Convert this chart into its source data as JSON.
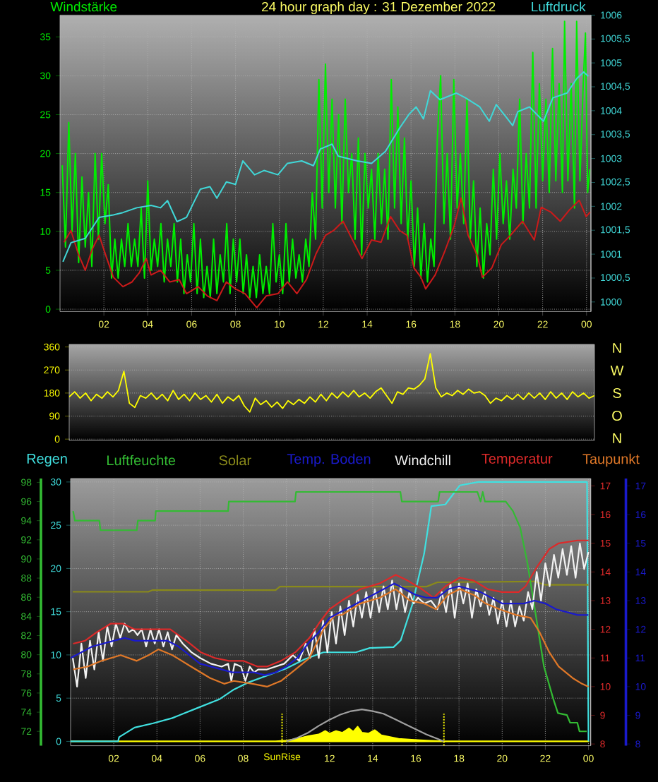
{
  "chart_data": [
    {
      "type": "line",
      "title": "24 hour graph day : 31 Dezember 2022",
      "ylabel": "Windstärke",
      "y2label": "Luftdruck",
      "xlim": [
        "2022-12-31T00:00",
        "2023-01-01T00:12"
      ],
      "xticks": [
        {
          "value": "2022-12-31T02:00",
          "label": "02"
        },
        {
          "value": "2022-12-31T04:00",
          "label": "04"
        },
        {
          "value": "2022-12-31T06:00",
          "label": "06"
        },
        {
          "value": "2022-12-31T08:00",
          "label": "08"
        },
        {
          "value": "2022-12-31T10:00",
          "label": "10"
        },
        {
          "value": "2022-12-31T12:00",
          "label": "12"
        },
        {
          "value": "2022-12-31T14:00",
          "label": "14"
        },
        {
          "value": "2022-12-31T16:00",
          "label": "16"
        },
        {
          "value": "2022-12-31T18:00",
          "label": "18"
        },
        {
          "value": "2022-12-31T20:00",
          "label": "20"
        },
        {
          "value": "2022-12-31T22:00",
          "label": "22"
        },
        {
          "value": "2023-01-01T00:00",
          "label": "00"
        }
      ],
      "ylim": [
        -0.3,
        37.8
      ],
      "yticks": [
        0,
        5,
        10,
        15,
        20,
        25,
        30,
        35
      ],
      "y2lim": [
        999.8,
        1006
      ],
      "y2ticks": [
        1000,
        {
          "value": 1000.5,
          "label": "1000,5"
        },
        1001,
        {
          "value": 1001.5,
          "label": "1001,5"
        },
        1002,
        {
          "value": 1002.5,
          "label": "1002,5"
        },
        1003,
        {
          "value": 1003.5,
          "label": "1003,5"
        },
        1004,
        {
          "value": 1004.5,
          "label": "1004,5"
        },
        1005,
        {
          "value": 1005.5,
          "label": "1005,5"
        },
        1006
      ],
      "grid": true,
      "series": [
        {
          "color": "#00ee00",
          "x": [
            "2022-12-31T00:06",
            "2022-12-31T00:15",
            "2022-12-31T00:24",
            "2022-12-31T00:33",
            "2022-12-31T00:42",
            "2022-12-31T00:51",
            "2022-12-31T01:00",
            "2022-12-31T01:09",
            "2022-12-31T01:18",
            "2022-12-31T01:27",
            "2022-12-31T01:36",
            "2022-12-31T01:45",
            "2022-12-31T01:54",
            "2022-12-31T02:03",
            "2022-12-31T02:12",
            "2022-12-31T02:21",
            "2022-12-31T02:30",
            "2022-12-31T02:39",
            "2022-12-31T02:48",
            "2022-12-31T02:57",
            "2022-12-31T03:06",
            "2022-12-31T03:15",
            "2022-12-31T03:24",
            "2022-12-31T03:33",
            "2022-12-31T03:42",
            "2022-12-31T03:51",
            "2022-12-31T04:00",
            "2022-12-31T04:09",
            "2022-12-31T04:18",
            "2022-12-31T04:27",
            "2022-12-31T04:36",
            "2022-12-31T04:45",
            "2022-12-31T04:54",
            "2022-12-31T05:03",
            "2022-12-31T05:12",
            "2022-12-31T05:21",
            "2022-12-31T05:30",
            "2022-12-31T05:39",
            "2022-12-31T05:48",
            "2022-12-31T05:57",
            "2022-12-31T06:06",
            "2022-12-31T06:15",
            "2022-12-31T06:24",
            "2022-12-31T06:33",
            "2022-12-31T06:42",
            "2022-12-31T06:51",
            "2022-12-31T07:00",
            "2022-12-31T07:09",
            "2022-12-31T07:18",
            "2022-12-31T07:27",
            "2022-12-31T07:36",
            "2022-12-31T07:45",
            "2022-12-31T07:54",
            "2022-12-31T08:03",
            "2022-12-31T08:12",
            "2022-12-31T08:21",
            "2022-12-31T08:30",
            "2022-12-31T08:39",
            "2022-12-31T08:48",
            "2022-12-31T08:57",
            "2022-12-31T09:06",
            "2022-12-31T09:15",
            "2022-12-31T09:24",
            "2022-12-31T09:33",
            "2022-12-31T09:42",
            "2022-12-31T09:51",
            "2022-12-31T10:00",
            "2022-12-31T10:09",
            "2022-12-31T10:18",
            "2022-12-31T10:27",
            "2022-12-31T10:36",
            "2022-12-31T10:45",
            "2022-12-31T10:54",
            "2022-12-31T11:03",
            "2022-12-31T11:12",
            "2022-12-31T11:21",
            "2022-12-31T11:30",
            "2022-12-31T11:39",
            "2022-12-31T11:48",
            "2022-12-31T11:57",
            "2022-12-31T12:06",
            "2022-12-31T12:15",
            "2022-12-31T12:24",
            "2022-12-31T12:33",
            "2022-12-31T12:42",
            "2022-12-31T12:51",
            "2022-12-31T13:00",
            "2022-12-31T13:09",
            "2022-12-31T13:18",
            "2022-12-31T13:27",
            "2022-12-31T13:36",
            "2022-12-31T13:45",
            "2022-12-31T13:54",
            "2022-12-31T14:03",
            "2022-12-31T14:12",
            "2022-12-31T14:21",
            "2022-12-31T14:30",
            "2022-12-31T14:39",
            "2022-12-31T14:48",
            "2022-12-31T14:57",
            "2022-12-31T15:06",
            "2022-12-31T15:15",
            "2022-12-31T15:24",
            "2022-12-31T15:33",
            "2022-12-31T15:42",
            "2022-12-31T15:51",
            "2022-12-31T16:00",
            "2022-12-31T16:09",
            "2022-12-31T16:18",
            "2022-12-31T16:27",
            "2022-12-31T16:36",
            "2022-12-31T16:45",
            "2022-12-31T16:54",
            "2022-12-31T17:03",
            "2022-12-31T17:12",
            "2022-12-31T17:21",
            "2022-12-31T17:30",
            "2022-12-31T17:39",
            "2022-12-31T17:48",
            "2022-12-31T17:57",
            "2022-12-31T18:06",
            "2022-12-31T18:15",
            "2022-12-31T18:24",
            "2022-12-31T18:33",
            "2022-12-31T18:42",
            "2022-12-31T18:51",
            "2022-12-31T19:00",
            "2022-12-31T19:09",
            "2022-12-31T19:18",
            "2022-12-31T19:27",
            "2022-12-31T19:36",
            "2022-12-31T19:45",
            "2022-12-31T19:54",
            "2022-12-31T20:03",
            "2022-12-31T20:12",
            "2022-12-31T20:21",
            "2022-12-31T20:30",
            "2022-12-31T20:39",
            "2022-12-31T20:48",
            "2022-12-31T20:57",
            "2022-12-31T21:06",
            "2022-12-31T21:15",
            "2022-12-31T21:24",
            "2022-12-31T21:33",
            "2022-12-31T21:42",
            "2022-12-31T21:51",
            "2022-12-31T22:00",
            "2022-12-31T22:09",
            "2022-12-31T22:18",
            "2022-12-31T22:27",
            "2022-12-31T22:36",
            "2022-12-31T22:45",
            "2022-12-31T22:54",
            "2022-12-31T23:00",
            "2022-12-31T23:09",
            "2022-12-31T23:18",
            "2022-12-31T23:27",
            "2022-12-31T23:33",
            "2022-12-31T23:42",
            "2022-12-31T23:51",
            "2022-12-31T23:57",
            "2023-01-01T00:03",
            "2023-01-01T00:09"
          ],
          "values": [
            18.5,
            8,
            24,
            10,
            20,
            6,
            17,
            8,
            15,
            5.5,
            20,
            9,
            20,
            11,
            16,
            4,
            9,
            4,
            9,
            5.5,
            11,
            5.5,
            9,
            5.5,
            13,
            4,
            16.5,
            5,
            9,
            5.5,
            11,
            3.5,
            9,
            5.5,
            11,
            3.5,
            9,
            2,
            7,
            3.5,
            11,
            2,
            9,
            1.5,
            5.5,
            1.5,
            9,
            2,
            7,
            3.5,
            11,
            2,
            9,
            3.5,
            9,
            2,
            7,
            1.5,
            5.5,
            1.5,
            7,
            2,
            5.5,
            2,
            11,
            3.5,
            7,
            2,
            11,
            3.5,
            9,
            4,
            7,
            3.5,
            9,
            5.5,
            15,
            9,
            29.5,
            13,
            31.5,
            15,
            27,
            13,
            25,
            11,
            27,
            15,
            20,
            9,
            22,
            7,
            20,
            13,
            18,
            9,
            20,
            11,
            18,
            9,
            29.5,
            13,
            26,
            11,
            22,
            9,
            16.5,
            5.5,
            13,
            4,
            11,
            3.5,
            9,
            5.5,
            22,
            30,
            11,
            20,
            9,
            29.5,
            13,
            20,
            11,
            27,
            9,
            16.5,
            5.5,
            13,
            4,
            11,
            7,
            18,
            9,
            20,
            11,
            16.5,
            9,
            18,
            13,
            27,
            11,
            20,
            13,
            33,
            13,
            29,
            16.5,
            27,
            15,
            33.5,
            16.5,
            29,
            15,
            37,
            16.5,
            29,
            13,
            37,
            16.5,
            29,
            35.5,
            15,
            18
          ]
        },
        {
          "color": "#cc1a1a",
          "x": [
            "2022-12-31T00:11",
            "2022-12-31T00:30",
            "2022-12-31T00:50",
            "2022-12-31T01:09",
            "2022-12-31T01:28",
            "2022-12-31T01:47",
            "2022-12-31T02:06",
            "2022-12-31T02:26",
            "2022-12-31T02:52",
            "2022-12-31T03:17",
            "2022-12-31T03:37",
            "2022-12-31T03:56",
            "2022-12-31T04:09",
            "2022-12-31T04:35",
            "2022-12-31T05:00",
            "2022-12-31T05:26",
            "2022-12-31T05:46",
            "2022-12-31T06:18",
            "2022-12-31T06:43",
            "2022-12-31T07:09",
            "2022-12-31T07:35",
            "2022-12-31T08:00",
            "2022-12-31T08:26",
            "2022-12-31T08:58",
            "2022-12-31T09:24",
            "2022-12-31T09:56",
            "2022-12-31T10:22",
            "2022-12-31T10:48",
            "2022-12-31T11:14",
            "2022-12-31T11:40",
            "2022-12-31T12:06",
            "2022-12-31T12:28",
            "2022-12-31T12:54",
            "2022-12-31T13:20",
            "2022-12-31T13:46",
            "2022-12-31T14:12",
            "2022-12-31T14:38",
            "2022-12-31T15:04",
            "2022-12-31T15:29",
            "2022-12-31T15:49",
            "2022-12-31T16:08",
            "2022-12-31T16:27",
            "2022-12-31T16:40",
            "2022-12-31T17:06",
            "2022-12-31T17:32",
            "2022-12-31T17:58",
            "2022-12-31T18:17",
            "2022-12-31T18:36",
            "2022-12-31T19:02",
            "2022-12-31T19:15",
            "2022-12-31T19:41",
            "2022-12-31T20:07",
            "2022-12-31T20:32",
            "2022-12-31T21:05",
            "2022-12-31T21:37",
            "2022-12-31T21:56",
            "2022-12-31T22:22",
            "2022-12-31T22:48",
            "2022-12-31T23:14",
            "2022-12-31T23:40",
            "2022-12-31T23:59",
            "2023-01-01T00:10"
          ],
          "values": [
            8.6,
            10.1,
            7.1,
            5.0,
            7.7,
            9.5,
            6.8,
            4.1,
            2.9,
            3.5,
            4.7,
            6.5,
            4.4,
            5.0,
            3.5,
            3.8,
            2.0,
            2.9,
            1.7,
            1.1,
            3.5,
            2.6,
            2.0,
            0.2,
            1.7,
            2.0,
            3.5,
            2.0,
            3.8,
            7.1,
            9.5,
            10.1,
            11.3,
            8.9,
            6.5,
            8.9,
            8.6,
            11.9,
            10.1,
            9.5,
            5.3,
            4.1,
            2.6,
            4.4,
            7.4,
            10.7,
            14.3,
            9.5,
            6.8,
            4.1,
            5.3,
            8.3,
            9.5,
            11.3,
            8.9,
            13.1,
            12.5,
            11.3,
            12.8,
            14.0,
            11.9,
            12.5
          ]
        },
        {
          "color": "#40d8d8",
          "axis": "y2",
          "x": [
            "2022-12-31T00:08",
            "2022-12-31T00:30",
            "2022-12-31T01:09",
            "2022-12-31T01:47",
            "2022-12-31T02:26",
            "2022-12-31T02:52",
            "2022-12-31T03:30",
            "2022-12-31T04:09",
            "2022-12-31T04:35",
            "2022-12-31T04:54",
            "2022-12-31T05:20",
            "2022-12-31T05:46",
            "2022-12-31T06:05",
            "2022-12-31T06:24",
            "2022-12-31T06:50",
            "2022-12-31T07:09",
            "2022-12-31T07:35",
            "2022-12-31T08:00",
            "2022-12-31T08:20",
            "2022-12-31T08:52",
            "2022-12-31T09:18",
            "2022-12-31T09:56",
            "2022-12-31T10:22",
            "2022-12-31T11:01",
            "2022-12-31T11:33",
            "2022-12-31T11:52",
            "2022-12-31T12:24",
            "2022-12-31T12:41",
            "2022-12-31T13:33",
            "2022-12-31T14:12",
            "2022-12-31T14:50",
            "2022-12-31T15:29",
            "2022-12-31T15:55",
            "2022-12-31T16:14",
            "2022-12-31T16:34",
            "2022-12-31T16:53",
            "2022-12-31T17:19",
            "2022-12-31T18:04",
            "2022-12-31T18:29",
            "2022-12-31T19:08",
            "2022-12-31T19:34",
            "2022-12-31T19:53",
            "2022-12-31T20:19",
            "2022-12-31T20:38",
            "2022-12-31T20:52",
            "2022-12-31T21:24",
            "2022-12-31T22:02",
            "2022-12-31T22:28",
            "2022-12-31T23:07",
            "2022-12-31T23:33",
            "2022-12-31T23:52",
            "2023-01-01T00:05"
          ],
          "values": [
            1000.84,
            1001.24,
            1001.33,
            1001.77,
            1001.82,
            1001.87,
            1001.97,
            1002.02,
            1001.97,
            1002.12,
            1001.68,
            1001.77,
            1002.07,
            1002.36,
            1002.41,
            1002.17,
            1002.51,
            1002.46,
            1002.95,
            1002.66,
            1002.75,
            1002.66,
            1002.9,
            1002.95,
            1002.85,
            1003.2,
            1003.3,
            1003.05,
            1002.95,
            1002.9,
            1003.15,
            1003.64,
            1003.93,
            1004.08,
            1003.83,
            1004.42,
            1004.23,
            1004.37,
            1004.27,
            1004.08,
            1003.78,
            1004.13,
            1003.88,
            1003.69,
            1003.98,
            1004.08,
            1003.78,
            1004.27,
            1004.37,
            1004.67,
            1004.81,
            1004.72
          ]
        }
      ]
    },
    {
      "type": "line",
      "categories": [
        null,
        null,
        null,
        null,
        null,
        null,
        null,
        null,
        null,
        null,
        null,
        null,
        null,
        null,
        null,
        null,
        null,
        null,
        null,
        null,
        null,
        null,
        null,
        null,
        null,
        null,
        null,
        null,
        null,
        null,
        null,
        null,
        null,
        null,
        null,
        null,
        null,
        null,
        null,
        null,
        null,
        null,
        null,
        null,
        null,
        null,
        null,
        null,
        null,
        null,
        null,
        null,
        null,
        null,
        null,
        null,
        null,
        null,
        null,
        null,
        null,
        null,
        null,
        null,
        null,
        null,
        null,
        null,
        null,
        null,
        null,
        null,
        null,
        null,
        null,
        null,
        null,
        null,
        null,
        null,
        null,
        null,
        null,
        null,
        null,
        null,
        null,
        null,
        null,
        null,
        null,
        null,
        null,
        null,
        null,
        null,
        null
      ],
      "ylim": [
        -5,
        370
      ],
      "yticks": [
        0,
        90,
        180,
        270,
        360
      ],
      "tick_labels": "y",
      "grid": "y",
      "annotations": [
        "N",
        "W",
        "S",
        "O",
        "N"
      ],
      "series": [
        {
          "color": "#ffff00",
          "values": [
            165,
            185,
            160,
            180,
            150,
            175,
            160,
            185,
            165,
            190,
            265,
            140,
            124,
            170,
            160,
            180,
            155,
            175,
            150,
            190,
            155,
            175,
            150,
            180,
            155,
            170,
            145,
            175,
            140,
            165,
            150,
            170,
            130,
            106,
            160,
            135,
            150,
            125,
            145,
            120,
            150,
            135,
            155,
            140,
            165,
            145,
            175,
            150,
            180,
            160,
            185,
            165,
            190,
            165,
            180,
            160,
            185,
            200,
            170,
            140,
            185,
            175,
            200,
            195,
            210,
            235,
            334,
            200,
            165,
            180,
            170,
            190,
            175,
            195,
            180,
            185,
            170,
            140,
            160,
            150,
            170,
            155,
            175,
            155,
            180,
            160,
            180,
            155,
            185,
            160,
            180,
            155,
            185,
            165,
            180,
            160,
            170
          ]
        }
      ]
    },
    {
      "type": "line",
      "legend": "top",
      "xlim": [
        "2022-12-31T00:00",
        "2023-01-01T00:06"
      ],
      "xticks": [
        {
          "value": "2022-12-31T02:00",
          "label": "02"
        },
        {
          "value": "2022-12-31T04:00",
          "label": "04"
        },
        {
          "value": "2022-12-31T06:00",
          "label": "06"
        },
        {
          "value": "2022-12-31T08:00",
          "label": "08"
        },
        {
          "value": "2022-12-31T10:00",
          "label": null
        },
        {
          "value": "2022-12-31T12:00",
          "label": "12"
        },
        {
          "value": "2022-12-31T14:00",
          "label": "14"
        },
        {
          "value": "2022-12-31T16:00",
          "label": "16"
        },
        {
          "value": "2022-12-31T18:00",
          "label": "18"
        },
        {
          "value": "2022-12-31T20:00",
          "label": "20"
        },
        {
          "value": "2022-12-31T22:00",
          "label": "22"
        },
        {
          "value": "2023-01-01T00:00",
          "label": "00"
        }
      ],
      "ylim": [
        -0.5,
        30.4
      ],
      "yticks": [
        0,
        5,
        10,
        15,
        20,
        25,
        30
      ],
      "y2lim": [
        7.94,
        17.26
      ],
      "y2ticks": [
        8,
        9,
        10,
        11,
        12,
        13,
        14,
        15,
        16,
        17
      ],
      "y3lim": [
        70.5,
        98.4
      ],
      "y3ticks": [
        72,
        74,
        76,
        78,
        80,
        82,
        84,
        86,
        88,
        90,
        92,
        94,
        96,
        98
      ],
      "grid": true,
      "ref_lines": [
        {
          "axis": "x",
          "value": "2022-12-31T09:48",
          "label": "SunRise",
          "color": "#ffff00",
          "line_style": "dotted"
        },
        {
          "axis": "x",
          "value": "2022-12-31T17:18",
          "color": "#ffff00",
          "line_style": "dotted"
        }
      ],
      "series": [
        {
          "type": "area",
          "color": "#ffff00",
          "x": [
            "2022-12-31T00:00",
            "2022-12-31T09:30",
            "2022-12-31T10:00",
            "2022-12-31T10:30",
            "2022-12-31T11:00",
            "2022-12-31T11:30",
            "2022-12-31T11:48",
            "2022-12-31T12:00",
            "2022-12-31T12:18",
            "2022-12-31T12:36",
            "2022-12-31T12:54",
            "2022-12-31T13:06",
            "2022-12-31T13:18",
            "2022-12-31T13:30",
            "2022-12-31T13:48",
            "2022-12-31T14:06",
            "2022-12-31T14:24",
            "2022-12-31T14:48",
            "2022-12-31T15:12",
            "2022-12-31T15:48",
            "2022-12-31T16:30",
            "2022-12-31T17:18",
            "2023-01-01T00:00"
          ],
          "values": [
            0,
            0,
            0.1,
            0.3,
            0.6,
            0.8,
            1.2,
            0.9,
            1.2,
            1.0,
            1.5,
            1.1,
            1.7,
            1.0,
            0.9,
            1.3,
            0.7,
            0.5,
            0.3,
            0.2,
            0.1,
            0,
            0
          ]
        },
        {
          "color": "#a0a0a0",
          "x": [
            "2022-12-31T10:00",
            "2022-12-31T10:30",
            "2022-12-31T11:00",
            "2022-12-31T11:30",
            "2022-12-31T12:00",
            "2022-12-31T12:30",
            "2022-12-31T13:00",
            "2022-12-31T13:30",
            "2022-12-31T14:00",
            "2022-12-31T14:30",
            "2022-12-31T15:00",
            "2022-12-31T15:30",
            "2022-12-31T16:00",
            "2022-12-31T16:30",
            "2022-12-31T17:00",
            "2022-12-31T17:18"
          ],
          "values": [
            0,
            0.4,
            1.0,
            1.8,
            2.5,
            3.1,
            3.5,
            3.7,
            3.5,
            3.2,
            2.6,
            2.0,
            1.4,
            0.8,
            0.3,
            0
          ]
        },
        {
          "name": "Regen",
          "color": "#40e0e0",
          "x": [
            "2022-12-31T00:00",
            "2022-12-31T02:12",
            "2022-12-31T02:15",
            "2022-12-31T02:58",
            "2022-12-31T03:50",
            "2022-12-31T04:43",
            "2022-12-31T05:49",
            "2022-12-31T06:55",
            "2022-12-31T07:34",
            "2022-12-31T08:13",
            "2022-12-31T09:06",
            "2022-12-31T09:58",
            "2022-12-31T10:51",
            "2022-12-31T11:43",
            "2022-12-31T12:23",
            "2022-12-31T13:13",
            "2022-12-31T13:52",
            "2022-12-31T14:58",
            "2022-12-31T15:18",
            "2022-12-31T15:50",
            "2022-12-31T16:23",
            "2022-12-31T16:43",
            "2022-12-31T17:22",
            "2022-12-31T18:02",
            "2022-12-31T18:54",
            "2022-12-31T23:56",
            "2023-01-01T00:00"
          ],
          "values": [
            0,
            0,
            0.5,
            1.6,
            2.1,
            2.7,
            3.8,
            4.9,
            6.0,
            6.8,
            7.6,
            8.4,
            9.5,
            10.3,
            10.3,
            10.3,
            10.8,
            10.9,
            11.7,
            15.8,
            21.7,
            27.2,
            27.4,
            29.6,
            30.0,
            30.0,
            0
          ]
        },
        {
          "name": "Luftfeuchte",
          "color": "#33bb33",
          "axis": "y3",
          "x": [
            "2022-12-31T00:07",
            "2022-12-31T00:12",
            "2022-12-31T01:20",
            "2022-12-31T01:23",
            "2022-12-31T03:04",
            "2022-12-31T03:07",
            "2022-12-31T03:55",
            "2022-12-31T03:57",
            "2022-12-31T07:18",
            "2022-12-31T07:20",
            "2022-12-31T10:24",
            "2022-12-31T10:27",
            "2022-12-31T15:17",
            "2022-12-31T15:21",
            "2022-12-31T17:02",
            "2022-12-31T17:06",
            "2022-12-31T18:51",
            "2022-12-31T19:00",
            "2022-12-31T19:06",
            "2022-12-31T19:12",
            "2022-12-31T20:10",
            "2022-12-31T20:30",
            "2022-12-31T20:50",
            "2022-12-31T21:10",
            "2022-12-31T21:29",
            "2022-12-31T21:56",
            "2022-12-31T22:22",
            "2022-12-31T22:35",
            "2022-12-31T23:00",
            "2022-12-31T23:09",
            "2022-12-31T23:29",
            "2022-12-31T23:35",
            "2022-12-31T23:55"
          ],
          "values": [
            95,
            94,
            94,
            93,
            93,
            94,
            94,
            95,
            95,
            96,
            96,
            97,
            97,
            96,
            96,
            97,
            97,
            96,
            97,
            96,
            96,
            95,
            93.3,
            89.6,
            85.2,
            78.8,
            75.4,
            73.9,
            73.7,
            72.9,
            72.9,
            72,
            72
          ]
        },
        {
          "name": "Solar",
          "color": "#8a8a1a",
          "x": [
            "2022-12-31T00:06",
            "2022-12-31T03:36",
            "2022-12-31T03:48",
            "2022-12-31T09:30",
            "2022-12-31T09:42",
            "2022-12-31T16:30",
            "2022-12-31T17:00",
            "2022-12-31T21:30",
            "2022-12-31T22:00",
            "2023-01-01T00:00"
          ],
          "values": [
            17.3,
            17.3,
            17.5,
            17.5,
            17.9,
            17.9,
            18.4,
            18.5,
            18.1,
            18.1
          ]
        },
        {
          "name": "Windchill",
          "color": "#f2f2f2",
          "axis": "y2",
          "x": [
            "2022-12-31T00:06",
            "2022-12-31T00:18",
            "2022-12-31T00:30",
            "2022-12-31T00:42",
            "2022-12-31T00:54",
            "2022-12-31T01:06",
            "2022-12-31T01:18",
            "2022-12-31T01:30",
            "2022-12-31T01:42",
            "2022-12-31T01:54",
            "2022-12-31T02:06",
            "2022-12-31T02:18",
            "2022-12-31T02:30",
            "2022-12-31T02:42",
            "2022-12-31T02:54",
            "2022-12-31T03:06",
            "2022-12-31T03:18",
            "2022-12-31T03:30",
            "2022-12-31T03:42",
            "2022-12-31T03:54",
            "2022-12-31T04:06",
            "2022-12-31T04:18",
            "2022-12-31T04:30",
            "2022-12-31T04:42",
            "2022-12-31T04:54",
            "2022-12-31T05:12",
            "2022-12-31T05:36",
            "2022-12-31T06:00",
            "2022-12-31T06:30",
            "2022-12-31T07:00",
            "2022-12-31T07:18",
            "2022-12-31T07:27",
            "2022-12-31T07:36",
            "2022-12-31T07:54",
            "2022-12-31T08:06",
            "2022-12-31T08:18",
            "2022-12-31T08:30",
            "2022-12-31T08:42",
            "2022-12-31T09:06",
            "2022-12-31T09:30",
            "2022-12-31T09:54",
            "2022-12-31T10:18",
            "2022-12-31T10:36",
            "2022-12-31T10:54",
            "2022-12-31T11:06",
            "2022-12-31T11:18",
            "2022-12-31T11:30",
            "2022-12-31T11:42",
            "2022-12-31T11:54",
            "2022-12-31T12:06",
            "2022-12-31T12:18",
            "2022-12-31T12:30",
            "2022-12-31T12:42",
            "2022-12-31T12:54",
            "2022-12-31T13:06",
            "2022-12-31T13:18",
            "2022-12-31T13:30",
            "2022-12-31T13:42",
            "2022-12-31T13:54",
            "2022-12-31T14:06",
            "2022-12-31T14:18",
            "2022-12-31T14:30",
            "2022-12-31T14:42",
            "2022-12-31T14:54",
            "2022-12-31T15:06",
            "2022-12-31T15:18",
            "2022-12-31T15:30",
            "2022-12-31T15:42",
            "2022-12-31T15:54",
            "2022-12-31T16:06",
            "2022-12-31T16:24",
            "2022-12-31T16:42",
            "2022-12-31T17:00",
            "2022-12-31T17:12",
            "2022-12-31T17:24",
            "2022-12-31T17:36",
            "2022-12-31T17:48",
            "2022-12-31T18:00",
            "2022-12-31T18:12",
            "2022-12-31T18:24",
            "2022-12-31T18:36",
            "2022-12-31T18:48",
            "2022-12-31T19:00",
            "2022-12-31T19:12",
            "2022-12-31T19:24",
            "2022-12-31T19:36",
            "2022-12-31T19:48",
            "2022-12-31T20:00",
            "2022-12-31T20:12",
            "2022-12-31T20:24",
            "2022-12-31T20:36",
            "2022-12-31T20:48",
            "2022-12-31T21:00",
            "2022-12-31T21:12",
            "2022-12-31T21:24",
            "2022-12-31T21:36",
            "2022-12-31T21:48",
            "2022-12-31T22:00",
            "2022-12-31T22:12",
            "2022-12-31T22:24",
            "2022-12-31T22:36",
            "2022-12-31T22:48",
            "2022-12-31T23:00",
            "2022-12-31T23:12",
            "2022-12-31T23:24",
            "2022-12-31T23:36",
            "2022-12-31T23:48",
            "2023-01-01T00:00"
          ],
          "values": [
            11.0,
            10.0,
            11.5,
            10.3,
            11.6,
            10.6,
            11.9,
            10.9,
            12.1,
            11.4,
            12.2,
            11.7,
            12.2,
            11.9,
            12.0,
            11.8,
            12.0,
            11.4,
            12.0,
            11.5,
            12.0,
            11.4,
            11.9,
            11.3,
            11.8,
            11.5,
            11.2,
            11.0,
            10.8,
            10.7,
            10.8,
            10.2,
            10.8,
            10.7,
            10.2,
            10.7,
            10.5,
            10.6,
            10.6,
            10.7,
            10.8,
            11.1,
            10.9,
            11.5,
            11.0,
            12.0,
            11.0,
            12.3,
            11.2,
            12.6,
            11.5,
            12.8,
            11.8,
            13.0,
            12.1,
            13.2,
            12.4,
            13.3,
            12.4,
            13.4,
            12.6,
            13.5,
            12.7,
            13.7,
            12.7,
            13.5,
            12.6,
            13.3,
            12.9,
            13.1,
            12.9,
            13.0,
            12.7,
            13.3,
            12.6,
            13.6,
            12.4,
            13.6,
            12.9,
            13.6,
            12.4,
            13.4,
            12.8,
            13.3,
            12.5,
            13.1,
            12.2,
            13.0,
            12.1,
            13.0,
            12.1,
            12.8,
            12.3,
            13.3,
            12.7,
            14.0,
            13.0,
            14.3,
            13.5,
            14.6,
            13.8,
            14.8,
            13.9,
            14.9,
            13.8,
            15.0,
            14.1,
            14.7
          ]
        },
        {
          "name": "Temperatur",
          "color": "#dd2a2a",
          "axis": "y2",
          "x": [
            "2022-12-31T00:07",
            "2022-12-31T00:40",
            "2022-12-31T01:13",
            "2022-12-31T01:52",
            "2022-12-31T02:25",
            "2022-12-31T02:58",
            "2022-12-31T03:37",
            "2022-12-31T04:10",
            "2022-12-31T04:37",
            "2022-12-31T05:22",
            "2022-12-31T06:02",
            "2022-12-31T06:41",
            "2022-12-31T07:20",
            "2022-12-31T08:00",
            "2022-12-31T08:40",
            "2022-12-31T09:06",
            "2022-12-31T09:45",
            "2022-12-31T10:25",
            "2022-12-31T11:04",
            "2022-12-31T11:30",
            "2022-12-31T12:00",
            "2022-12-31T12:34",
            "2022-12-31T13:26",
            "2022-12-31T14:19",
            "2022-12-31T15:04",
            "2022-12-31T15:37",
            "2022-12-31T16:17",
            "2022-12-31T16:49",
            "2022-12-31T17:22",
            "2022-12-31T18:02",
            "2022-12-31T18:41",
            "2022-12-31T19:20",
            "2022-12-31T19:59",
            "2022-12-31T20:46",
            "2022-12-31T21:05",
            "2022-12-31T21:38",
            "2022-12-31T22:11",
            "2022-12-31T22:37",
            "2022-12-31T23:29",
            "2023-01-01T00:00"
          ],
          "values": [
            11.5,
            11.6,
            11.9,
            12.2,
            12.2,
            12.0,
            12.0,
            12.0,
            12.0,
            11.6,
            11.2,
            11.0,
            10.9,
            10.9,
            10.7,
            10.7,
            10.9,
            11.2,
            11.7,
            12.2,
            12.7,
            13.0,
            13.4,
            13.6,
            13.9,
            13.7,
            13.4,
            13.1,
            13.5,
            13.8,
            13.7,
            13.4,
            13.3,
            13.3,
            13.5,
            14.2,
            14.8,
            15.0,
            15.1,
            15.1
          ]
        },
        {
          "name": "Taupunkt",
          "color": "#e07828",
          "axis": "y2",
          "x": [
            "2022-12-31T00:07",
            "2022-12-31T00:47",
            "2022-12-31T01:26",
            "2022-12-31T02:19",
            "2022-12-31T03:04",
            "2022-12-31T03:37",
            "2022-12-31T04:04",
            "2022-12-31T04:43",
            "2022-12-31T05:35",
            "2022-12-31T06:28",
            "2022-12-31T07:07",
            "2022-12-31T07:34",
            "2022-12-31T08:26",
            "2022-12-31T09:06",
            "2022-12-31T09:45",
            "2022-12-31T10:25",
            "2022-12-31T11:04",
            "2022-12-31T11:43",
            "2022-12-31T12:16",
            "2022-12-31T12:34",
            "2022-12-31T13:26",
            "2022-12-31T14:19",
            "2022-12-31T15:04",
            "2022-12-31T15:44",
            "2022-12-31T16:23",
            "2022-12-31T16:56",
            "2022-12-31T17:29",
            "2022-12-31T18:02",
            "2022-12-31T18:41",
            "2022-12-31T19:14",
            "2022-12-31T19:53",
            "2022-12-31T20:39",
            "2022-12-31T21:19",
            "2022-12-31T21:44",
            "2022-12-31T22:11",
            "2022-12-31T22:37",
            "2022-12-31T23:16",
            "2022-12-31T23:42",
            "2023-01-01T00:00"
          ],
          "values": [
            10.6,
            10.7,
            10.9,
            11.1,
            10.9,
            11.1,
            11.3,
            11.1,
            10.7,
            10.3,
            10.1,
            10.2,
            10.1,
            10.0,
            10.2,
            10.6,
            11.0,
            12.0,
            12.5,
            12.5,
            12.9,
            13.1,
            13.4,
            13.0,
            12.9,
            12.7,
            13.2,
            13.4,
            13.2,
            12.9,
            12.7,
            12.5,
            12.4,
            11.9,
            11.2,
            10.7,
            10.3,
            10.1,
            10.0
          ]
        }
      ]
    },
    {
      "type": "line",
      "legend": "top",
      "categories": [
        null,
        null,
        null,
        null,
        null,
        null,
        null,
        null,
        null,
        null,
        null,
        null,
        null,
        null,
        null,
        null,
        null,
        null,
        null,
        null,
        null,
        null,
        null,
        null,
        null,
        null,
        null,
        null,
        null,
        null,
        null,
        null,
        null,
        null,
        null,
        null,
        null,
        null,
        null,
        null,
        null,
        null,
        null,
        null,
        null,
        null,
        null,
        null,
        null
      ],
      "ylim": [
        7.94,
        17.26
      ],
      "yticks": [
        8,
        9,
        10,
        11,
        12,
        13,
        14,
        15,
        16,
        17
      ],
      "tick_labels": "y",
      "series": [
        {
          "name": "Temp. Boden",
          "color": "#1a1acc",
          "values": [
            11.0,
            11.2,
            11.4,
            11.5,
            11.6,
            11.7,
            11.6,
            11.6,
            11.6,
            11.6,
            11.4,
            11.1,
            10.8,
            10.7,
            10.6,
            10.5,
            10.5,
            10.5,
            10.4,
            10.5,
            10.7,
            11.0,
            11.5,
            11.9,
            12.4,
            12.6,
            12.8,
            13.0,
            13.2,
            13.4,
            13.6,
            13.4,
            13.2,
            13.1,
            13.1,
            13.4,
            13.5,
            13.4,
            13.3,
            13.1,
            12.9,
            12.9,
            12.9,
            13.0,
            12.9,
            12.7,
            12.6,
            12.5,
            12.5
          ]
        }
      ]
    }
  ]
}
